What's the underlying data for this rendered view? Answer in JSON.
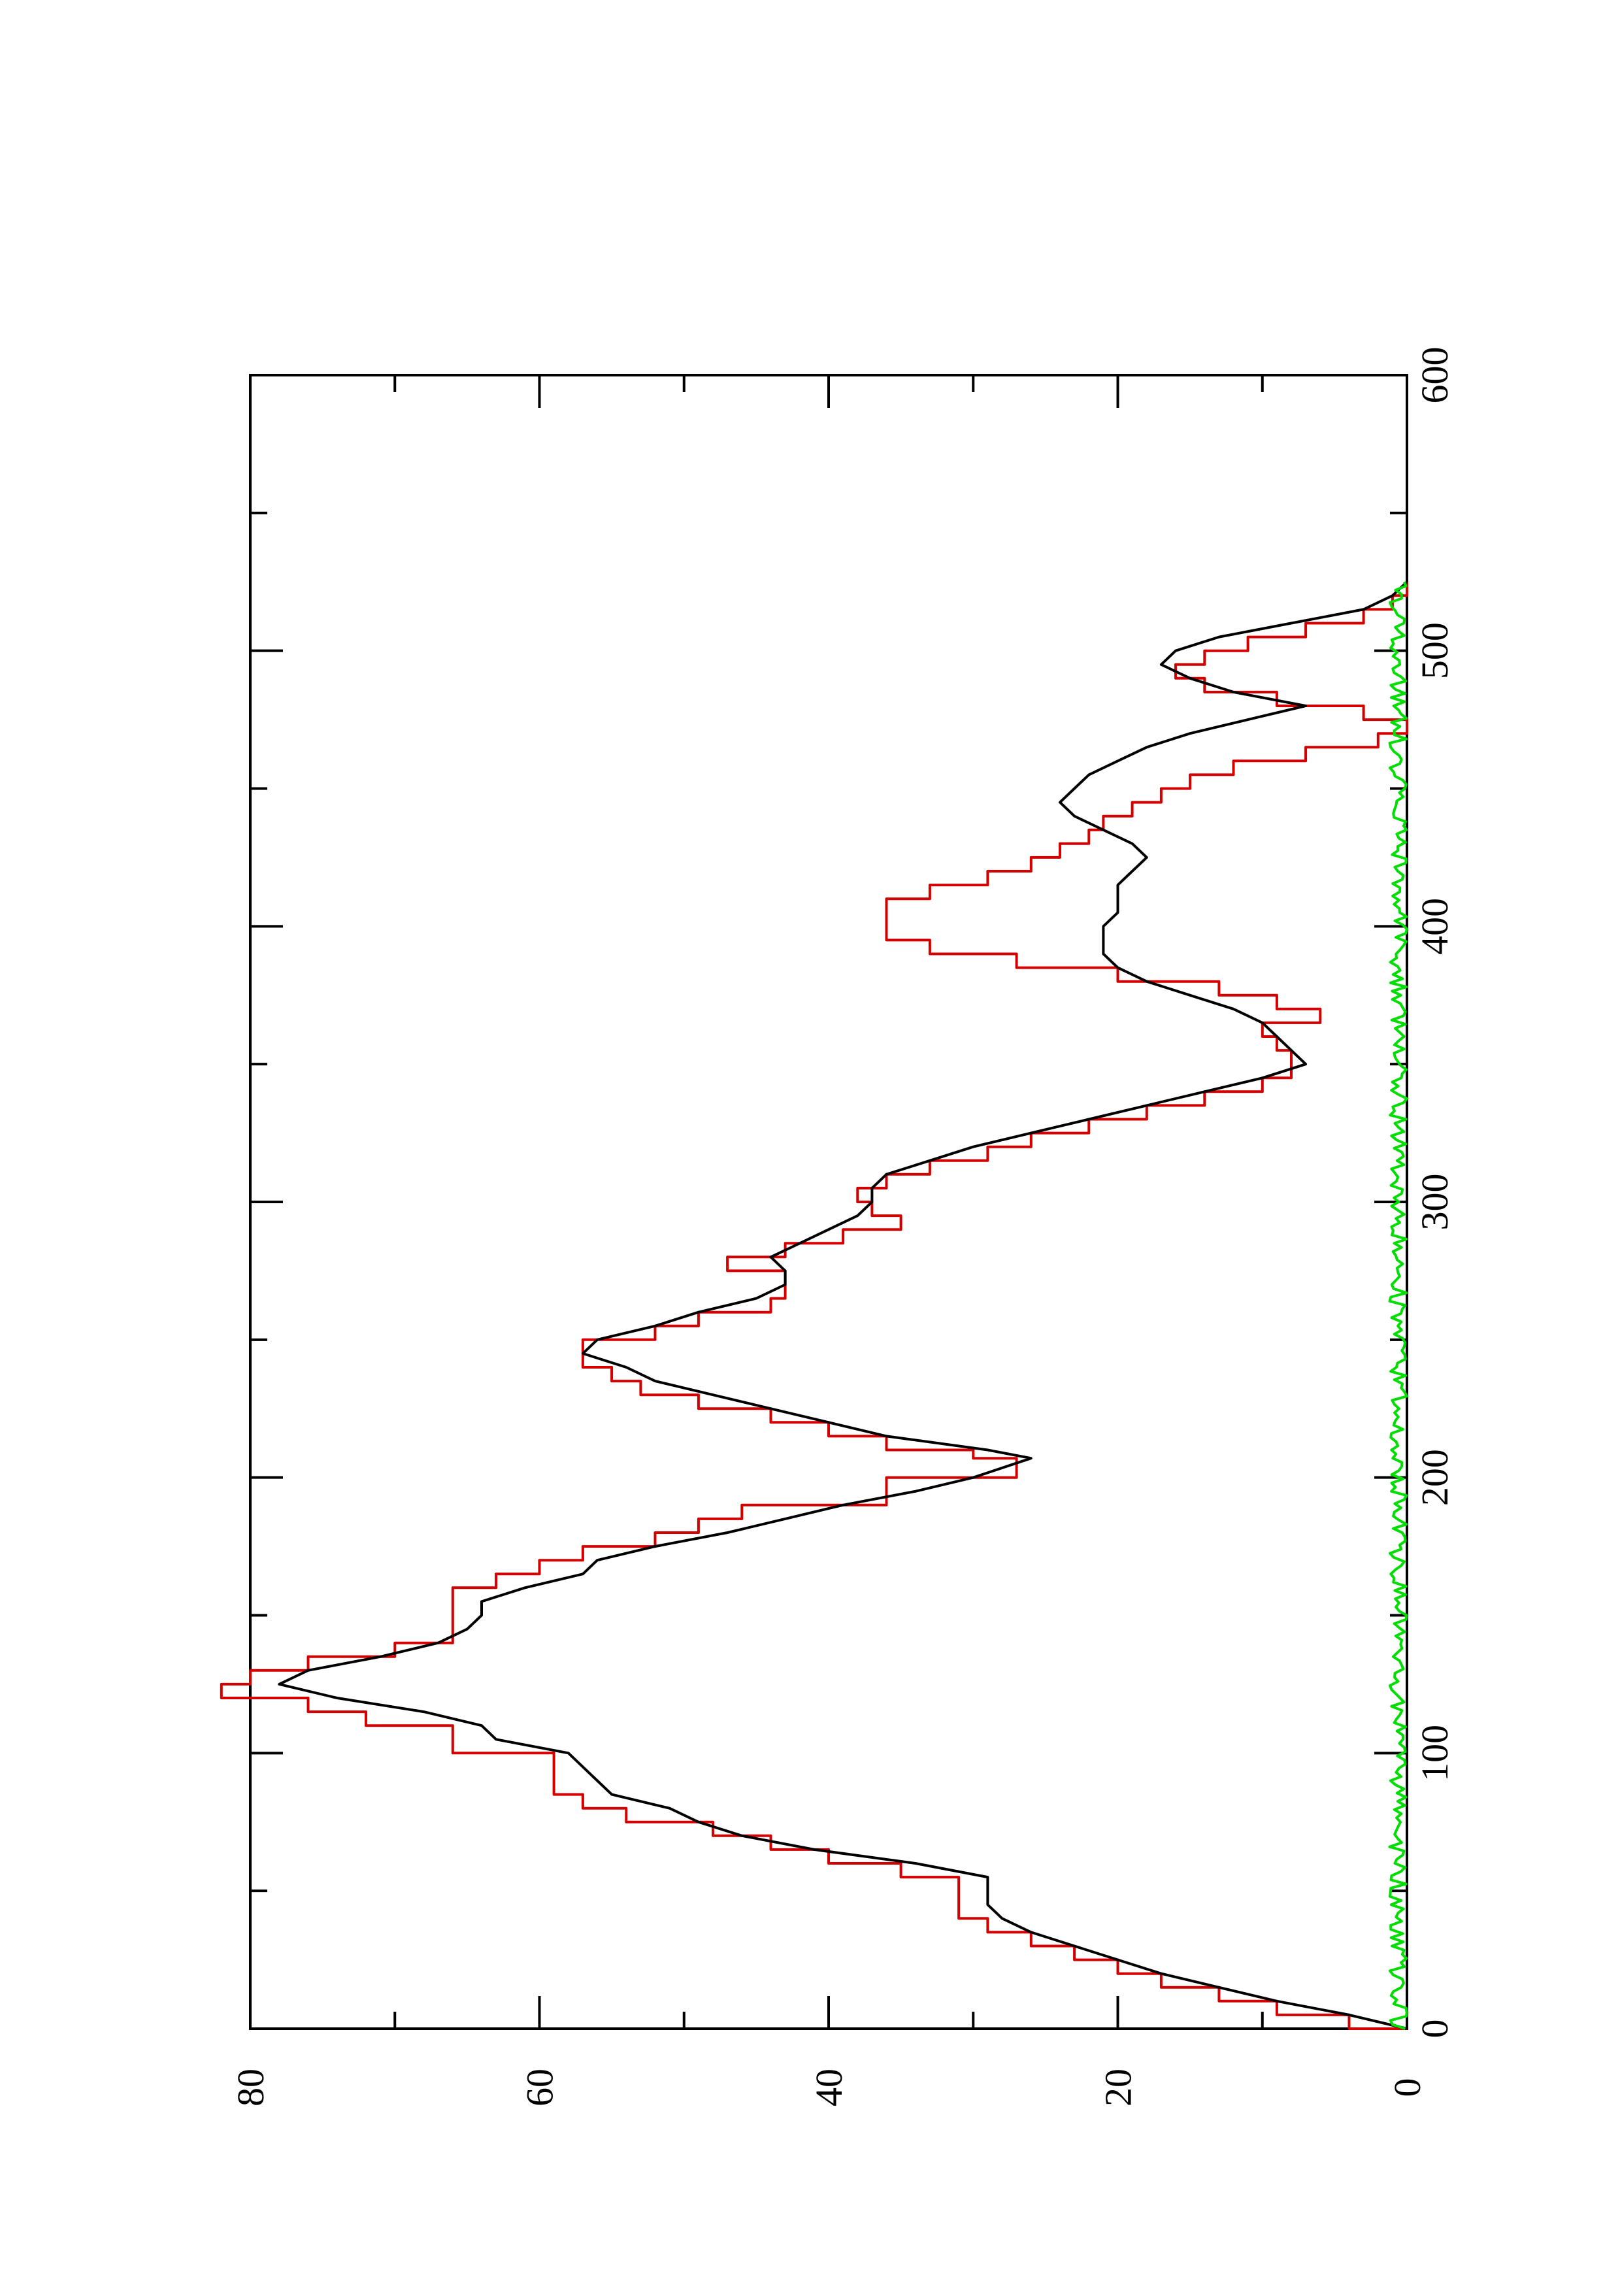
{
  "chart_data": {
    "type": "line",
    "orientation": "rotated 90 degrees counter-clockwise",
    "title": "",
    "xlabel": "",
    "ylabel": "",
    "xlim": [
      0,
      600
    ],
    "ylim": [
      0,
      80
    ],
    "x_ticks": [
      0,
      100,
      200,
      300,
      400,
      500,
      600
    ],
    "x_tick_labels": [
      "0",
      "100",
      "200",
      "300",
      "400",
      "500",
      "600"
    ],
    "y_ticks": [
      0,
      20,
      40,
      60,
      80
    ],
    "y_tick_labels": [
      "0",
      "20",
      "40",
      "60",
      "80"
    ],
    "grid": false,
    "legend": "none",
    "series": [
      {
        "color": "#d40000",
        "style": "step",
        "points": [
          [
            0,
            0
          ],
          [
            5,
            4
          ],
          [
            10,
            9
          ],
          [
            15,
            13
          ],
          [
            20,
            17
          ],
          [
            25,
            20
          ],
          [
            30,
            23
          ],
          [
            35,
            26
          ],
          [
            40,
            29
          ],
          [
            45,
            31
          ],
          [
            55,
            31
          ],
          [
            60,
            35
          ],
          [
            65,
            40
          ],
          [
            70,
            44
          ],
          [
            75,
            48
          ],
          [
            80,
            54
          ],
          [
            85,
            57
          ],
          [
            90,
            59
          ],
          [
            100,
            59
          ],
          [
            105,
            66
          ],
          [
            110,
            66
          ],
          [
            115,
            72
          ],
          [
            120,
            76
          ],
          [
            125,
            82
          ],
          [
            130,
            80
          ],
          [
            135,
            76
          ],
          [
            140,
            70
          ],
          [
            150,
            66
          ],
          [
            160,
            66
          ],
          [
            165,
            63
          ],
          [
            170,
            60
          ],
          [
            175,
            57
          ],
          [
            180,
            52
          ],
          [
            185,
            49
          ],
          [
            190,
            46
          ],
          [
            200,
            36
          ],
          [
            207,
            27
          ],
          [
            210,
            30
          ],
          [
            215,
            36
          ],
          [
            220,
            40
          ],
          [
            225,
            44
          ],
          [
            230,
            49
          ],
          [
            235,
            53
          ],
          [
            240,
            55
          ],
          [
            245,
            57
          ],
          [
            250,
            57
          ],
          [
            255,
            52
          ],
          [
            260,
            49
          ],
          [
            265,
            44
          ],
          [
            270,
            43
          ],
          [
            275,
            43
          ],
          [
            280,
            47
          ],
          [
            285,
            43
          ],
          [
            290,
            39
          ],
          [
            295,
            35
          ],
          [
            300,
            37
          ],
          [
            305,
            38
          ],
          [
            310,
            36
          ],
          [
            315,
            33
          ],
          [
            320,
            29
          ],
          [
            325,
            26
          ],
          [
            330,
            22
          ],
          [
            335,
            18
          ],
          [
            340,
            14
          ],
          [
            345,
            10
          ],
          [
            350,
            8
          ],
          [
            355,
            8
          ],
          [
            360,
            9
          ],
          [
            365,
            10
          ],
          [
            370,
            6
          ],
          [
            375,
            9
          ],
          [
            380,
            13
          ],
          [
            385,
            20
          ],
          [
            390,
            27
          ],
          [
            395,
            33
          ],
          [
            400,
            36
          ],
          [
            410,
            36
          ],
          [
            415,
            33
          ],
          [
            420,
            29
          ],
          [
            425,
            26
          ],
          [
            430,
            24
          ],
          [
            435,
            22
          ],
          [
            440,
            21
          ],
          [
            445,
            19
          ],
          [
            450,
            17
          ],
          [
            455,
            15
          ],
          [
            460,
            12
          ],
          [
            465,
            7
          ],
          [
            470,
            2
          ],
          [
            475,
            0
          ],
          [
            480,
            3
          ],
          [
            485,
            9
          ],
          [
            490,
            14
          ],
          [
            495,
            16
          ],
          [
            500,
            14
          ],
          [
            505,
            11
          ],
          [
            510,
            7
          ],
          [
            515,
            3
          ],
          [
            520,
            1
          ],
          [
            525,
            0
          ]
        ]
      },
      {
        "color": "#000000",
        "style": "line",
        "points": [
          [
            0,
            0
          ],
          [
            5,
            4
          ],
          [
            10,
            9
          ],
          [
            15,
            13
          ],
          [
            20,
            17
          ],
          [
            25,
            20
          ],
          [
            30,
            23
          ],
          [
            35,
            26
          ],
          [
            40,
            28
          ],
          [
            45,
            29
          ],
          [
            50,
            29
          ],
          [
            55,
            29
          ],
          [
            60,
            34
          ],
          [
            65,
            41
          ],
          [
            70,
            46
          ],
          [
            75,
            49
          ],
          [
            80,
            51
          ],
          [
            85,
            55
          ],
          [
            90,
            56
          ],
          [
            95,
            57
          ],
          [
            100,
            58
          ],
          [
            105,
            63
          ],
          [
            110,
            64
          ],
          [
            115,
            68
          ],
          [
            120,
            74
          ],
          [
            125,
            78
          ],
          [
            130,
            76
          ],
          [
            135,
            71
          ],
          [
            140,
            67
          ],
          [
            145,
            65
          ],
          [
            150,
            64
          ],
          [
            155,
            64
          ],
          [
            160,
            61
          ],
          [
            165,
            57
          ],
          [
            170,
            56
          ],
          [
            175,
            52
          ],
          [
            180,
            47
          ],
          [
            185,
            43
          ],
          [
            190,
            39
          ],
          [
            195,
            34
          ],
          [
            200,
            30
          ],
          [
            207,
            26
          ],
          [
            210,
            29
          ],
          [
            215,
            36
          ],
          [
            220,
            40
          ],
          [
            225,
            44
          ],
          [
            230,
            48
          ],
          [
            235,
            52
          ],
          [
            240,
            54
          ],
          [
            245,
            57
          ],
          [
            250,
            56
          ],
          [
            255,
            52
          ],
          [
            260,
            49
          ],
          [
            265,
            45
          ],
          [
            270,
            43
          ],
          [
            275,
            43
          ],
          [
            280,
            44
          ],
          [
            285,
            42
          ],
          [
            290,
            40
          ],
          [
            295,
            38
          ],
          [
            300,
            37
          ],
          [
            305,
            37
          ],
          [
            310,
            36
          ],
          [
            315,
            33
          ],
          [
            320,
            30
          ],
          [
            325,
            26
          ],
          [
            330,
            22
          ],
          [
            335,
            18
          ],
          [
            340,
            14
          ],
          [
            345,
            10
          ],
          [
            350,
            7
          ],
          [
            355,
            8
          ],
          [
            360,
            9
          ],
          [
            365,
            10
          ],
          [
            370,
            12
          ],
          [
            375,
            15
          ],
          [
            380,
            18
          ],
          [
            385,
            20
          ],
          [
            390,
            21
          ],
          [
            395,
            21
          ],
          [
            400,
            21
          ],
          [
            405,
            20
          ],
          [
            410,
            20
          ],
          [
            415,
            20
          ],
          [
            420,
            19
          ],
          [
            425,
            18
          ],
          [
            430,
            19
          ],
          [
            435,
            21
          ],
          [
            440,
            23
          ],
          [
            445,
            24
          ],
          [
            450,
            23
          ],
          [
            455,
            22
          ],
          [
            460,
            20
          ],
          [
            465,
            18
          ],
          [
            470,
            15
          ],
          [
            475,
            11
          ],
          [
            480,
            7
          ],
          [
            485,
            12
          ],
          [
            490,
            15
          ],
          [
            495,
            17
          ],
          [
            500,
            16
          ],
          [
            505,
            13
          ],
          [
            510,
            8
          ],
          [
            515,
            3
          ],
          [
            520,
            1
          ],
          [
            525,
            0
          ]
        ]
      },
      {
        "color": "#00dd00",
        "style": "line",
        "noise_amplitude": 1.2,
        "x_range": [
          0,
          525
        ]
      }
    ]
  }
}
